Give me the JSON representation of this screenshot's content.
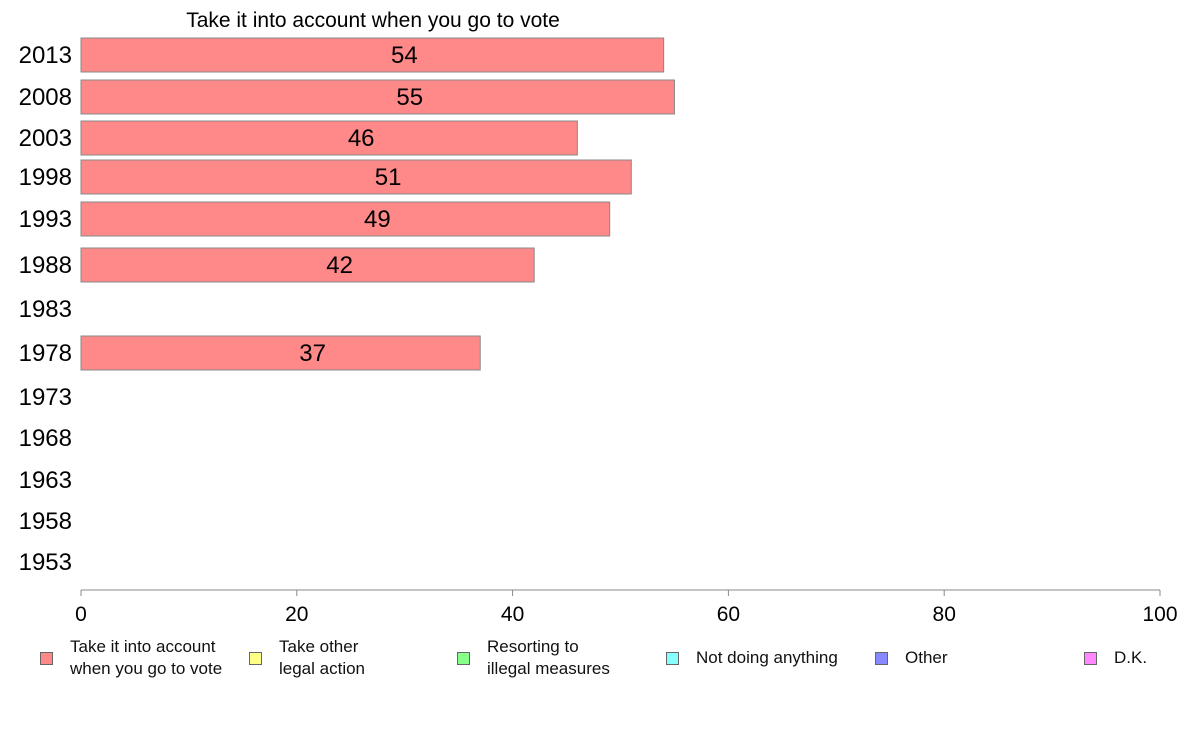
{
  "chart_data": {
    "type": "bar",
    "orientation": "horizontal",
    "title": "Take it into account when you go to vote",
    "categories": [
      "2013",
      "2008",
      "2003",
      "1998",
      "1993",
      "1988",
      "1983",
      "1978",
      "1973",
      "1968",
      "1963",
      "1958",
      "1953"
    ],
    "series": [
      {
        "name": "Take it into account when you go to vote",
        "color": "#ff8888",
        "values": [
          54,
          55,
          46,
          51,
          49,
          42,
          null,
          37,
          null,
          null,
          null,
          null,
          null
        ],
        "labels": [
          "54",
          "55",
          "46",
          "51",
          "49",
          "42",
          "",
          "37",
          "",
          "",
          "",
          "",
          ""
        ]
      }
    ],
    "xlim": [
      0,
      100
    ],
    "xticks": [
      0,
      20,
      40,
      60,
      80,
      100
    ],
    "xtick_labels": [
      "0",
      "20",
      "40",
      "60",
      "80",
      "100"
    ],
    "grid": false,
    "legend_position": "bottom",
    "legend": [
      {
        "label": "Take it into account\nwhen you go to vote",
        "color": "#ff8888"
      },
      {
        "label": "Take other\nlegal action",
        "color": "#ffff88"
      },
      {
        "label": "Resorting to\nillegal measures",
        "color": "#88ff88"
      },
      {
        "label": "Not doing anything",
        "color": "#88ffff"
      },
      {
        "label": "Other",
        "color": "#8888ff"
      },
      {
        "label": "D.K.",
        "color": "#ff88ff"
      }
    ]
  }
}
